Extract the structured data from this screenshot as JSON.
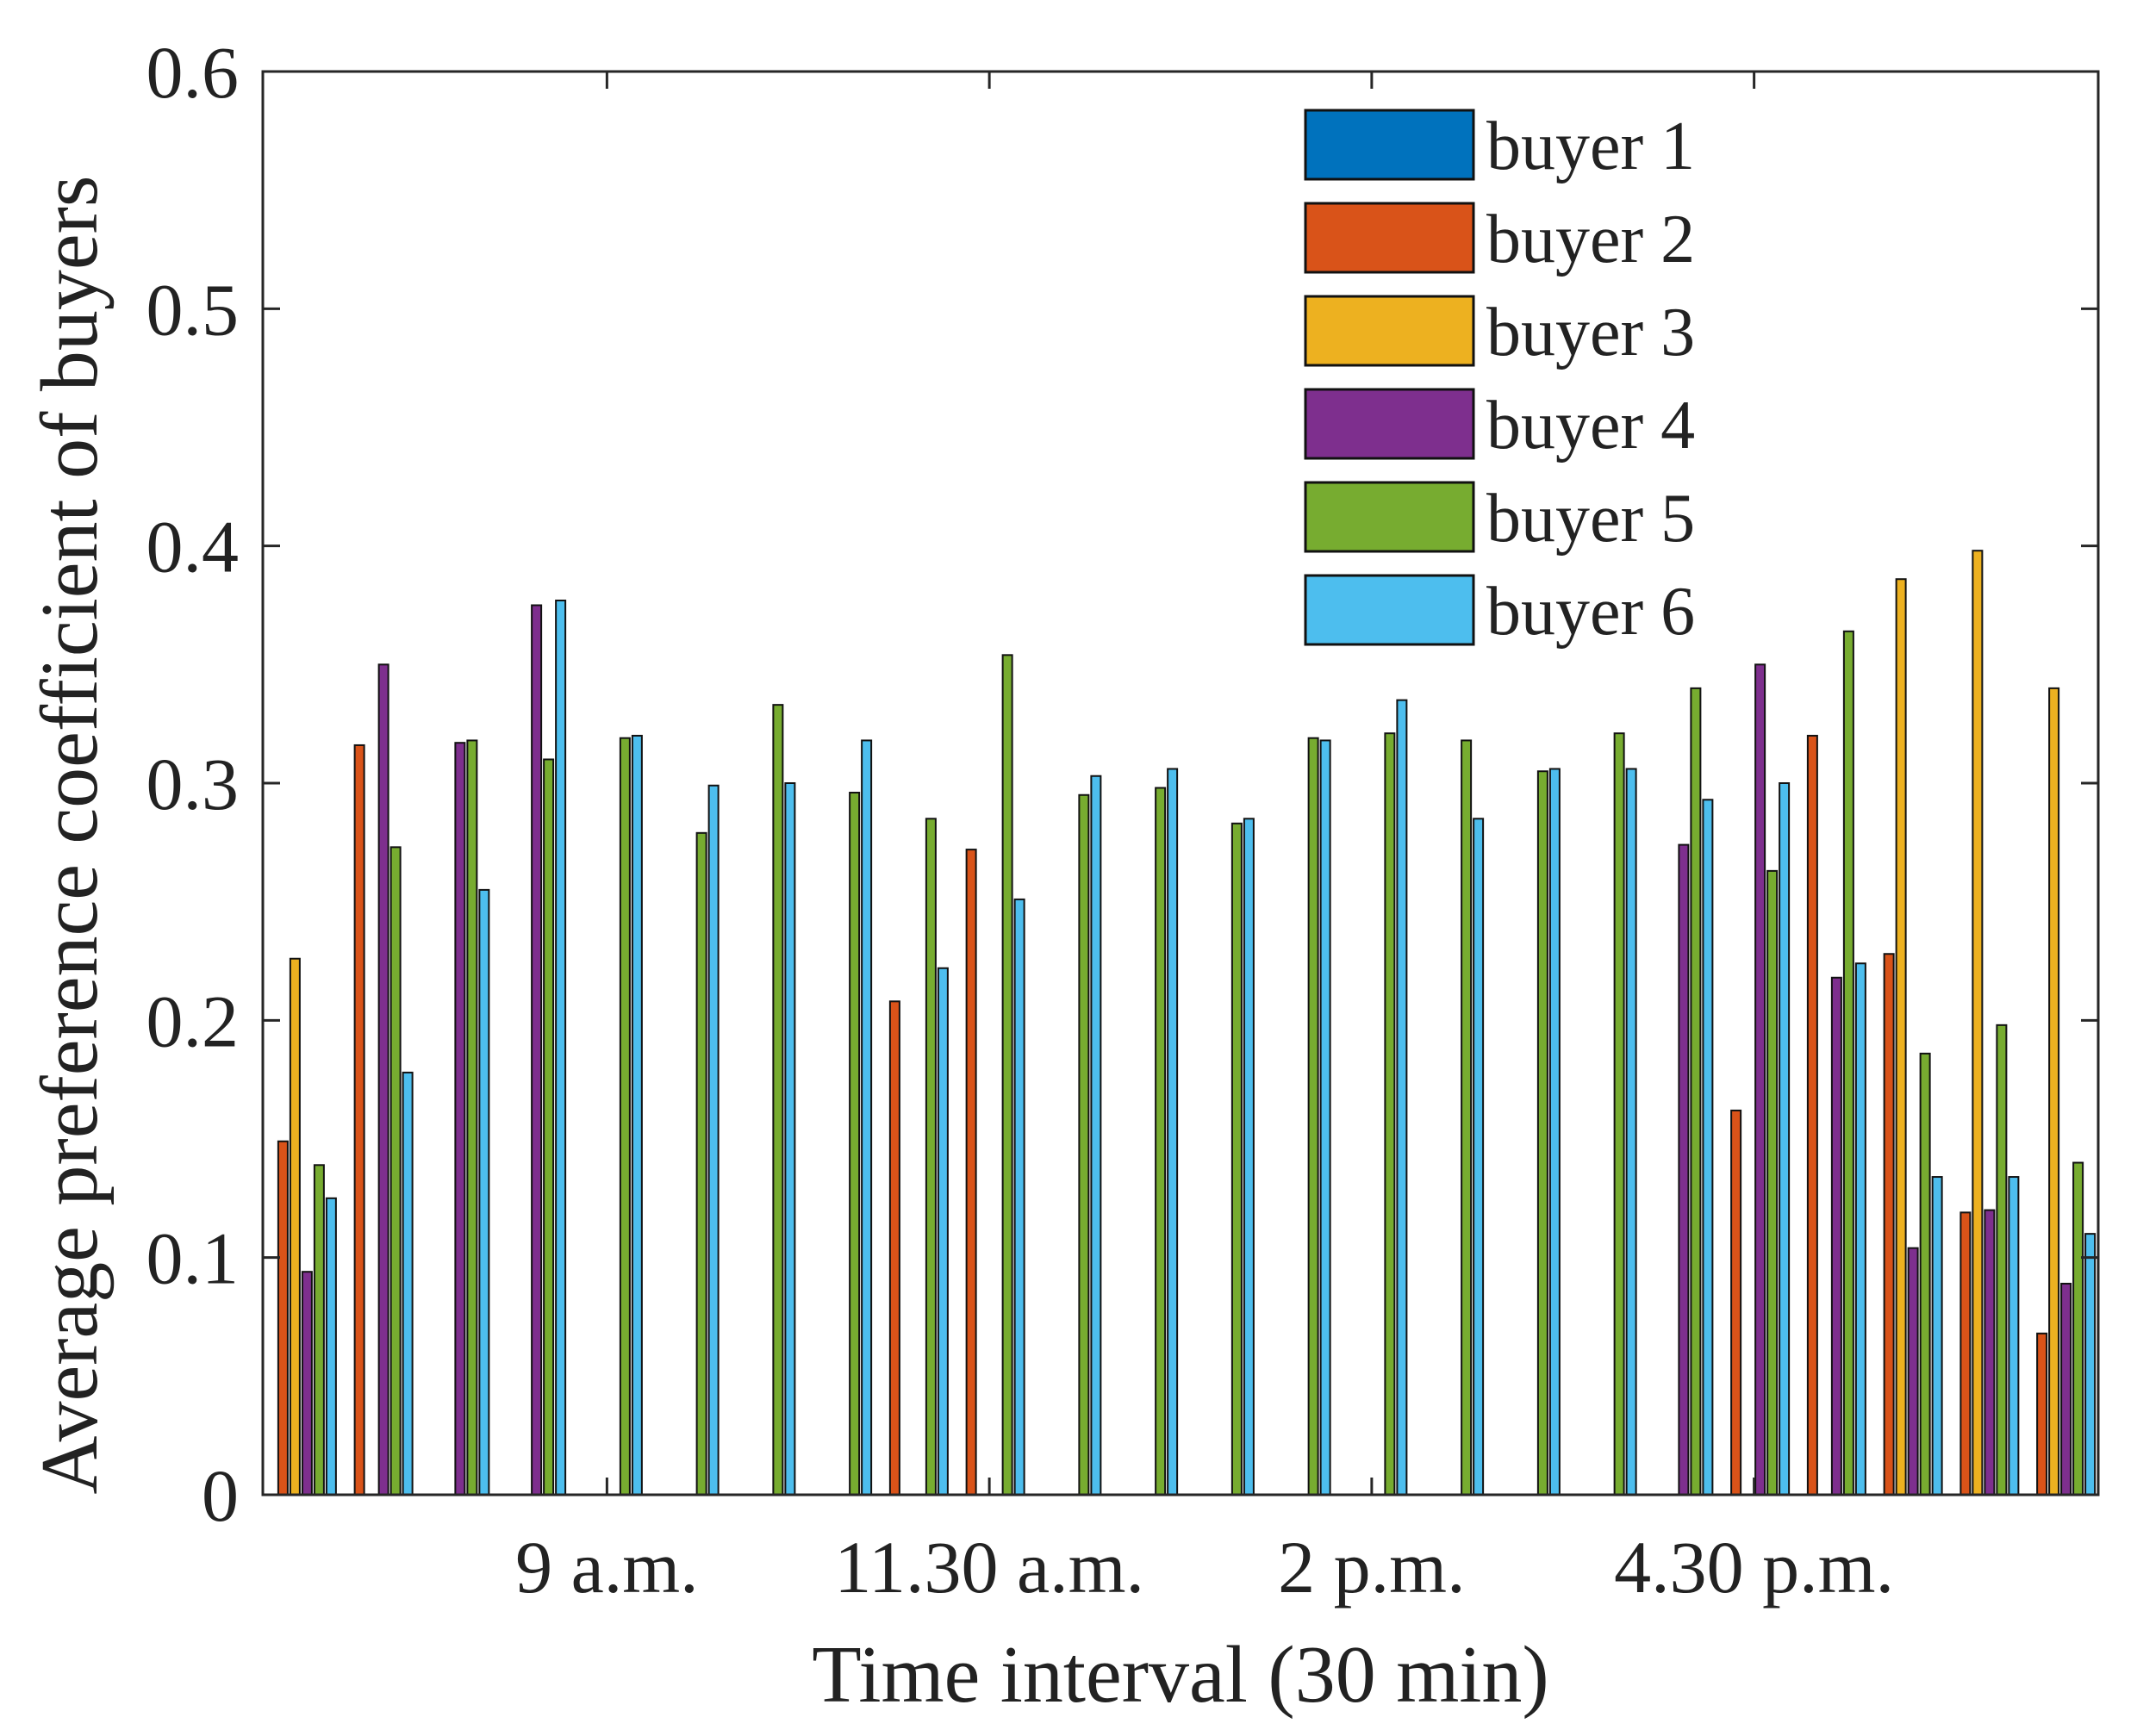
{
  "chart_data": {
    "type": "bar",
    "title": "",
    "xlabel": "Time interval (30 min)",
    "ylabel": "Average preference coefficient of buyers",
    "ylim": [
      0,
      0.6
    ],
    "yticks": [
      0,
      0.1,
      0.2,
      0.3,
      0.4,
      0.5,
      0.6
    ],
    "ytick_labels": [
      "0",
      "0.1",
      "0.2",
      "0.3",
      "0.4",
      "0.5",
      "0.6"
    ],
    "n_intervals": 24,
    "xtick_labels": [
      {
        "after_interval": 4.5,
        "label": "9 a.m."
      },
      {
        "after_interval": 9.5,
        "label": "11.30 a.m."
      },
      {
        "after_interval": 14.5,
        "label": "2 p.m."
      },
      {
        "after_interval": 19.5,
        "label": "4.30 p.m."
      }
    ],
    "legend_position": "top-right",
    "series": [
      {
        "name": "buyer 1",
        "color": "#0072BD",
        "values": [
          0,
          0,
          0,
          0,
          0,
          0,
          0,
          0,
          0,
          0,
          0,
          0,
          0,
          0,
          0,
          0,
          0,
          0,
          0,
          0,
          0,
          0,
          0,
          0
        ]
      },
      {
        "name": "buyer 2",
        "color": "#D95319",
        "values": [
          0.149,
          0.316,
          0,
          0,
          0,
          0,
          0,
          0,
          0.208,
          0.272,
          0,
          0,
          0,
          0,
          0,
          0,
          0,
          0,
          0,
          0.162,
          0.32,
          0.228,
          0.119,
          0.068
        ]
      },
      {
        "name": "buyer 3",
        "color": "#EDB120",
        "values": [
          0.226,
          0,
          0,
          0,
          0,
          0,
          0,
          0,
          0,
          0,
          0,
          0,
          0,
          0,
          0,
          0,
          0,
          0,
          0,
          0,
          0,
          0.386,
          0.398,
          0.34
        ]
      },
      {
        "name": "buyer 4",
        "color": "#7E2F8E",
        "values": [
          0.094,
          0.35,
          0.317,
          0.375,
          0,
          0,
          0,
          0,
          0,
          0,
          0,
          0,
          0,
          0,
          0,
          0,
          0,
          0,
          0.274,
          0.35,
          0.218,
          0.104,
          0.12,
          0.089
        ]
      },
      {
        "name": "buyer 5",
        "color": "#77AC30",
        "values": [
          0.139,
          0.273,
          0.318,
          0.31,
          0.319,
          0.279,
          0.333,
          0.296,
          0.285,
          0.354,
          0.295,
          0.298,
          0.283,
          0.319,
          0.321,
          0.318,
          0.305,
          0.321,
          0.34,
          0.263,
          0.364,
          0.186,
          0.198,
          0.14
        ]
      },
      {
        "name": "buyer 6",
        "color": "#4DBEEE",
        "values": [
          0.125,
          0.178,
          0.255,
          0.377,
          0.32,
          0.299,
          0.3,
          0.318,
          0.222,
          0.251,
          0.303,
          0.306,
          0.285,
          0.318,
          0.335,
          0.285,
          0.306,
          0.306,
          0.293,
          0.3,
          0.224,
          0.134,
          0.134,
          0.11
        ]
      }
    ]
  }
}
